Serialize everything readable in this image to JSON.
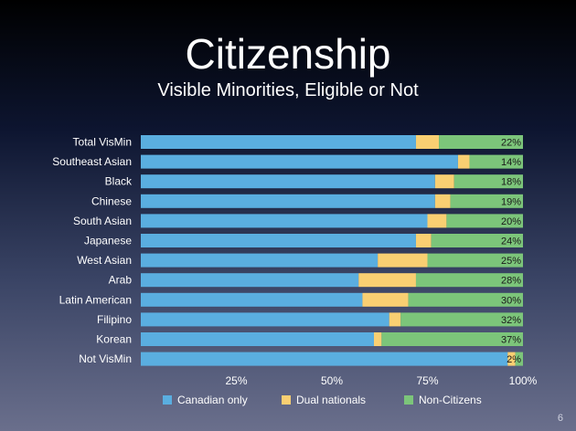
{
  "slide": {
    "title": "Citizenship",
    "subtitle": "Visible Minorities, Eligible or Not",
    "page_number": "6"
  },
  "colors": {
    "canadian_only": "#5aaee0",
    "dual_nationals": "#f9cf72",
    "non_citizens": "#7cc57a"
  },
  "chart_data": {
    "type": "bar",
    "orientation": "horizontal",
    "stacked": true,
    "percent_scale": true,
    "categories": [
      "Total VisMin",
      "Southeast Asian",
      "Black",
      "Chinese",
      "South Asian",
      "Japanese",
      "West Asian",
      "Arab",
      "Latin American",
      "Filipino",
      "Korean",
      "Not VisMin"
    ],
    "series": [
      {
        "name": "Canadian only",
        "values": [
          72,
          83,
          77,
          77,
          75,
          72,
          62,
          57,
          58,
          65,
          61,
          96
        ]
      },
      {
        "name": "Dual nationals",
        "values": [
          6,
          3,
          5,
          4,
          5,
          4,
          13,
          15,
          12,
          3,
          2,
          2
        ]
      },
      {
        "name": "Non-Citizens",
        "values": [
          22,
          14,
          18,
          19,
          20,
          24,
          25,
          28,
          30,
          32,
          37,
          2
        ]
      }
    ],
    "data_labels": [
      "22%",
      "14%",
      "18%",
      "19%",
      "20%",
      "24%",
      "25%",
      "28%",
      "30%",
      "32%",
      "37%",
      "2%"
    ],
    "xticks": [
      "25%",
      "50%",
      "75%",
      "100%"
    ],
    "xtick_values": [
      25,
      50,
      75,
      100
    ],
    "xlim": [
      0,
      100
    ],
    "legend": [
      "Canadian only",
      "Dual nationals",
      "Non-Citizens"
    ],
    "legend_position": "bottom"
  }
}
